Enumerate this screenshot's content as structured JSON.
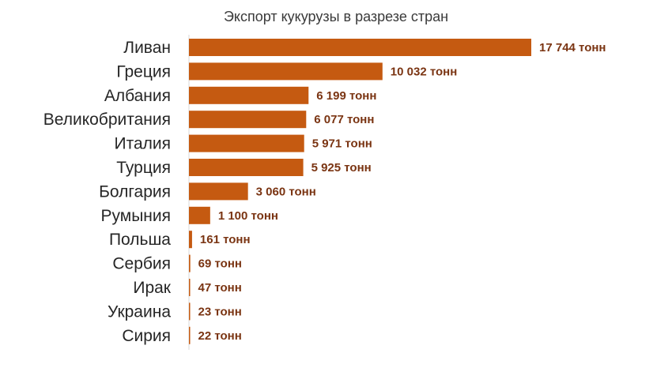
{
  "chart_data": {
    "type": "bar",
    "orientation": "horizontal",
    "title": "Экспорт кукурузы  в разрезе стран",
    "categories": [
      "Ливан",
      "Греция",
      "Албания",
      "Великобритания",
      "Италия",
      "Турция",
      "Болгария",
      "Румыния",
      "Польша",
      "Сербия",
      "Ирак",
      "Украина",
      "Сирия"
    ],
    "values": [
      17744,
      10032,
      6199,
      6077,
      5971,
      5925,
      3060,
      1100,
      161,
      69,
      47,
      23,
      22
    ],
    "data_labels": [
      "17 744 тонн",
      "10 032 тонн",
      "6 199 тонн",
      "6 077 тонн",
      "5 971 тонн",
      "5 925 тонн",
      "3 060 тонн",
      "1 100 тонн",
      "161 тонн",
      "69 тонн",
      "47 тонн",
      "23 тонн",
      "22 тонн"
    ],
    "xlabel": "",
    "ylabel": "",
    "xlim": [
      0,
      17744
    ],
    "grid": false,
    "legend": "none",
    "bar_color": "#c55a11"
  }
}
